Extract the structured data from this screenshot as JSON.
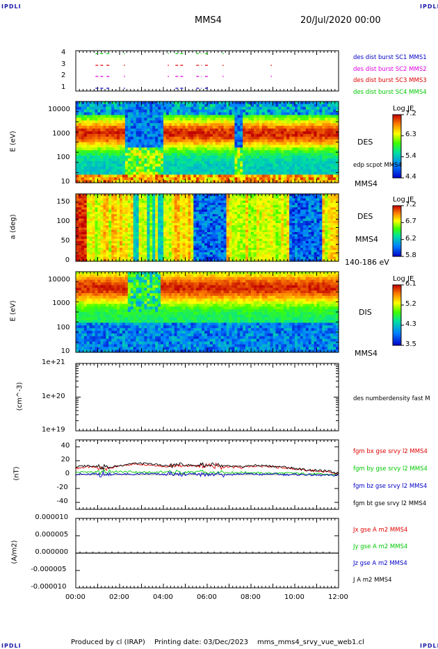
{
  "header": {
    "corner_left_top": "IPDLI",
    "corner_right_top": "IPDLI",
    "spacecraft": "MMS4",
    "date": "20/Jul/2020 00:00"
  },
  "footer": {
    "produced_by": "Produced by cl (IRAP)",
    "printing_date": "Printing date: 03/Dec/2023",
    "script": "mms_mms4_srvy_vue_web1.cl",
    "corner_left_bottom": "IPDLI",
    "corner_right_bottom": "IPDLI"
  },
  "colors": {
    "blue": "#0000c8",
    "magenta": "#e000e0",
    "red": "#e00000",
    "green": "#00c800",
    "black": "#000000"
  },
  "chart_data": [
    {
      "type": "scatter",
      "id": "burst",
      "yticks": [
        "4",
        "3",
        "2",
        "1"
      ],
      "xlim": [
        "00:00",
        "12:00"
      ],
      "legend": [
        {
          "label": "des dist burst SC1 MMS1",
          "color": "#0000c8"
        },
        {
          "label": "des dist burst SC2 MMS2",
          "color": "#e000e0"
        },
        {
          "label": "des dist burst SC3 MMS3",
          "color": "#e00000"
        },
        {
          "label": "des dist burst SC4 MMS4",
          "color": "#00c800"
        }
      ],
      "intervals_hours": [
        [
          0.9,
          1.25
        ],
        [
          1.4,
          1.6
        ],
        [
          2.2,
          2.25
        ],
        [
          4.2,
          4.25
        ],
        [
          4.55,
          4.95
        ],
        [
          5.5,
          5.75
        ],
        [
          5.9,
          6.1
        ],
        [
          6.7,
          6.75
        ],
        [
          8.9,
          8.95
        ]
      ]
    },
    {
      "type": "heatmap",
      "id": "des-energy",
      "ylabel": "E (eV)",
      "yscale": "log",
      "ylim": [
        10,
        30000
      ],
      "yticks": [
        "10000",
        "1000",
        "100",
        "10"
      ],
      "xlim": [
        "00:00",
        "12:00"
      ],
      "labels": [
        "DES",
        "edp scpot MMS4",
        "MMS4"
      ],
      "colorbar": {
        "title": "Log JE",
        "ticks": [
          "7.2",
          "6.3",
          "5.4",
          "4.4"
        ],
        "range": [
          4.4,
          7.2
        ]
      }
    },
    {
      "type": "heatmap",
      "id": "des-pitch",
      "ylabel": "a (deg)",
      "ylim": [
        0,
        180
      ],
      "yticks": [
        "150",
        "100",
        "50",
        "0"
      ],
      "xlim": [
        "00:00",
        "12:00"
      ],
      "labels": [
        "DES",
        "MMS4",
        "140-186 eV"
      ],
      "colorbar": {
        "title": "Log JE",
        "ticks": [
          "7.2",
          "6.7",
          "6.2",
          "5.8"
        ],
        "range": [
          5.8,
          7.2
        ]
      }
    },
    {
      "type": "heatmap",
      "id": "dis-energy",
      "ylabel": "E (eV)",
      "yscale": "log",
      "ylim": [
        10,
        30000
      ],
      "yticks": [
        "10000",
        "1000",
        "100",
        "10"
      ],
      "xlim": [
        "00:00",
        "12:00"
      ],
      "labels": [
        "DIS",
        "MMS4"
      ],
      "colorbar": {
        "title": "Log JE",
        "ticks": [
          "6.1",
          "5.2",
          "4.3",
          "3.5"
        ],
        "range": [
          3.5,
          6.1
        ]
      }
    },
    {
      "type": "line",
      "id": "density",
      "ylabel": "(cm^-3)",
      "yscale": "log",
      "ylim": [
        1e+19,
        1e+21
      ],
      "yticks": [
        "1e+21",
        "1e+20",
        "1e+19"
      ],
      "legend": [
        {
          "label": "des numberdensity fast M",
          "color": "#000000"
        }
      ],
      "series": []
    },
    {
      "type": "line",
      "id": "fgm",
      "ylabel": "(nT)",
      "ylim": [
        -50,
        50
      ],
      "yticks": [
        "40",
        "20",
        "0",
        "-20",
        "-40"
      ],
      "legend": [
        {
          "label": "fgm bx gse srvy l2 MMS4",
          "color": "#e00000"
        },
        {
          "label": "fgm by gse srvy l2 MMS4",
          "color": "#00c800"
        },
        {
          "label": "fgm bz gse srvy l2 MMS4",
          "color": "#0000c8"
        },
        {
          "label": "fgm bt gse srvy l2 MMS4",
          "color": "#000000"
        }
      ],
      "x_hours": [
        0,
        0.5,
        1,
        1.5,
        2,
        2.5,
        3,
        3.5,
        4,
        4.5,
        5,
        5.5,
        6,
        6.5,
        7,
        7.5,
        8,
        8.5,
        9,
        9.5,
        10,
        10.5,
        11,
        11.5,
        12
      ],
      "series": [
        {
          "name": "fgm bx gse srvy l2 MMS4",
          "values": [
            9,
            11,
            10,
            9,
            12,
            15,
            15,
            14,
            12,
            12,
            13,
            12,
            13,
            12,
            11,
            10,
            12,
            12,
            11,
            10,
            8,
            6,
            5,
            4,
            1
          ]
        },
        {
          "name": "fgm by gse srvy l2 MMS4",
          "values": [
            3,
            4,
            3,
            4,
            4,
            4,
            3,
            3,
            4,
            3,
            4,
            3,
            3,
            3,
            3,
            3,
            3,
            2,
            2,
            2,
            2,
            1,
            1,
            0,
            -1
          ]
        },
        {
          "name": "fgm bz gse srvy l2 MMS4",
          "values": [
            1,
            0,
            1,
            0,
            1,
            0,
            1,
            1,
            0,
            1,
            0,
            1,
            0,
            1,
            0,
            1,
            1,
            0,
            1,
            0,
            0,
            0,
            -1,
            -1,
            -1
          ]
        },
        {
          "name": "fgm bt gse srvy l2 MMS4",
          "values": [
            11,
            13,
            12,
            10,
            13,
            16,
            16,
            15,
            13,
            13,
            14,
            13,
            14,
            13,
            12,
            11,
            13,
            13,
            12,
            11,
            9,
            7,
            6,
            5,
            2
          ]
        }
      ]
    },
    {
      "type": "line",
      "id": "current",
      "ylabel": "(A/m2)",
      "ylim": [
        -1e-05,
        1e-05
      ],
      "yticks": [
        "0.000010",
        "0.000005",
        "0.000000",
        "-0.000005",
        "-0.000010"
      ],
      "legend": [
        {
          "label": "Jx gse A m2 MMS4",
          "color": "#e00000"
        },
        {
          "label": "Jy gse A m2 MMS4",
          "color": "#00c800"
        },
        {
          "label": "Jz gse A m2 MMS4",
          "color": "#0000c8"
        },
        {
          "label": "J A m2 MMS4",
          "color": "#000000"
        }
      ],
      "series": [
        {
          "name": "J A m2 MMS4",
          "values": [
            0,
            0,
            0,
            0,
            0,
            0,
            0,
            0,
            0,
            0,
            0,
            0,
            0
          ]
        }
      ],
      "xticks": [
        "00:00",
        "02:00",
        "04:00",
        "06:00",
        "08:00",
        "10:00",
        "12:00"
      ]
    }
  ]
}
